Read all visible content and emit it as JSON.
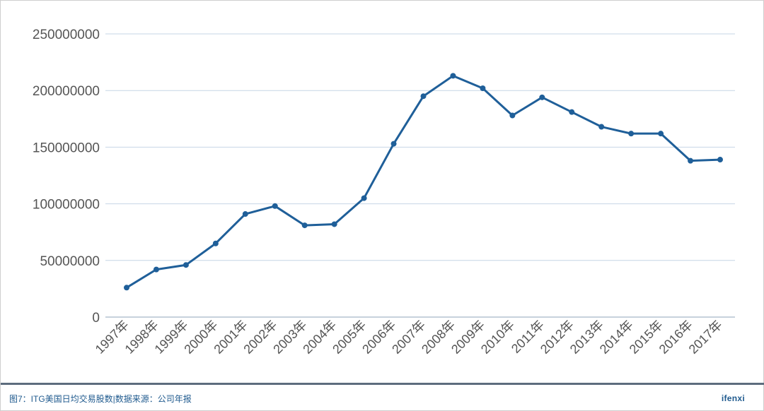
{
  "chart_data": {
    "type": "line",
    "categories": [
      "1997年",
      "1998年",
      "1999年",
      "2000年",
      "2001年",
      "2002年",
      "2003年",
      "2004年",
      "2005年",
      "2006年",
      "2007年",
      "2008年",
      "2009年",
      "2010年",
      "2011年",
      "2012年",
      "2013年",
      "2014年",
      "2015年",
      "2016年",
      "2017年"
    ],
    "series": [
      {
        "values": [
          26000000,
          42000000,
          46000000,
          65000000,
          91000000,
          98000000,
          81000000,
          82000000,
          105000000,
          153000000,
          195000000,
          213000000,
          202000000,
          178000000,
          194000000,
          181000000,
          168000000,
          162000000,
          162000000,
          138000000,
          139000000
        ]
      }
    ],
    "yticks": [
      "0",
      "50000000",
      "100000000",
      "150000000",
      "200000000",
      "250000000"
    ],
    "ylim": [
      0,
      250000000
    ],
    "grid": true,
    "line_color": "#1f5f99",
    "grid_color": "#c6d6e6"
  },
  "footer": {
    "caption": "图7：ITG美国日均交易股数|数据来源：公司年报",
    "brand": "ifenxi"
  }
}
